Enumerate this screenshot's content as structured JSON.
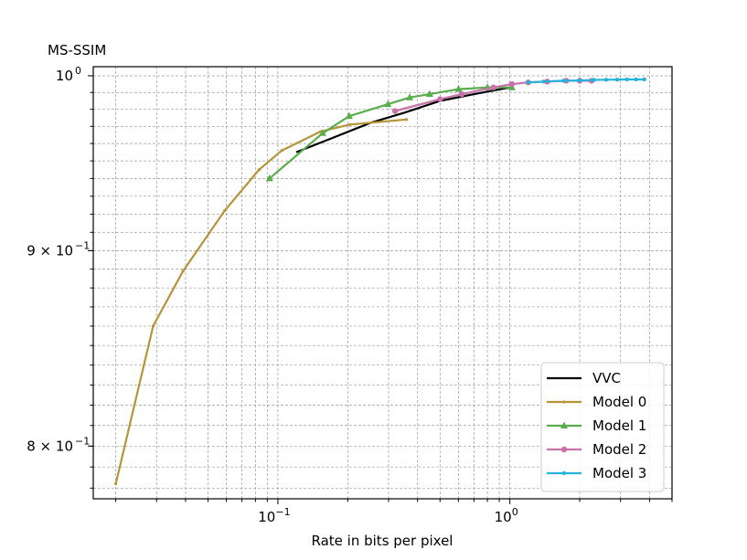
{
  "chart_data": {
    "type": "line",
    "ylabel": "MS-SSIM",
    "xlabel": "Rate in bits per pixel",
    "x_scale": "log",
    "y_scale": "log",
    "xlim": [
      0.016,
      5.0
    ],
    "ylim": [
      0.775,
      1.0055
    ],
    "grid": true,
    "legend_position": "lower-right",
    "x_ticks": [
      {
        "value": 0.1,
        "base": "10",
        "exp": "−1"
      },
      {
        "value": 1.0,
        "base": "10",
        "exp": "0"
      }
    ],
    "y_ticks": [
      {
        "value": 1.0,
        "mantissa": "",
        "base": "10",
        "exp": "0"
      },
      {
        "value": 0.9,
        "mantissa": "9 × ",
        "base": "10",
        "exp": "−1"
      },
      {
        "value": 0.8,
        "mantissa": "8 × ",
        "base": "10",
        "exp": "−1"
      }
    ],
    "series": [
      {
        "name": "VVC",
        "color": "#000000",
        "marker": "none",
        "x": [
          0.12,
          0.17,
          0.25,
          0.35,
          0.5,
          0.7,
          1.0
        ],
        "y": [
          0.955,
          0.963,
          0.972,
          0.978,
          0.985,
          0.989,
          0.993
        ]
      },
      {
        "name": "Model 0",
        "color": "#b5953a",
        "marker": "plus",
        "x": [
          0.02,
          0.029,
          0.039,
          0.059,
          0.083,
          0.104,
          0.153,
          0.204,
          0.358
        ],
        "y": [
          0.782,
          0.86,
          0.889,
          0.922,
          0.945,
          0.956,
          0.967,
          0.971,
          0.974
        ]
      },
      {
        "name": "Model 1",
        "color": "#5aad4d",
        "marker": "triangle",
        "x": [
          0.092,
          0.156,
          0.203,
          0.298,
          0.37,
          0.451,
          0.601,
          0.801,
          1.02
        ],
        "y": [
          0.94,
          0.966,
          0.976,
          0.983,
          0.987,
          0.989,
          0.992,
          0.993,
          0.993
        ]
      },
      {
        "name": "Model 2",
        "color": "#c772a8",
        "marker": "circle",
        "x": [
          0.32,
          0.5,
          0.62,
          0.85,
          1.02,
          1.2,
          1.45,
          1.75,
          2.0,
          2.25
        ],
        "y": [
          0.979,
          0.986,
          0.989,
          0.993,
          0.995,
          0.996,
          0.9965,
          0.997,
          0.997,
          0.997
        ]
      },
      {
        "name": "Model 3",
        "color": "#27b3d9",
        "marker": "dot",
        "x": [
          1.2,
          1.4,
          1.7,
          2.0,
          2.3,
          2.6,
          2.9,
          3.2,
          3.5,
          3.8
        ],
        "y": [
          0.996,
          0.9965,
          0.997,
          0.9972,
          0.9975,
          0.9976,
          0.9977,
          0.9978,
          0.9978,
          0.9978
        ]
      }
    ]
  }
}
